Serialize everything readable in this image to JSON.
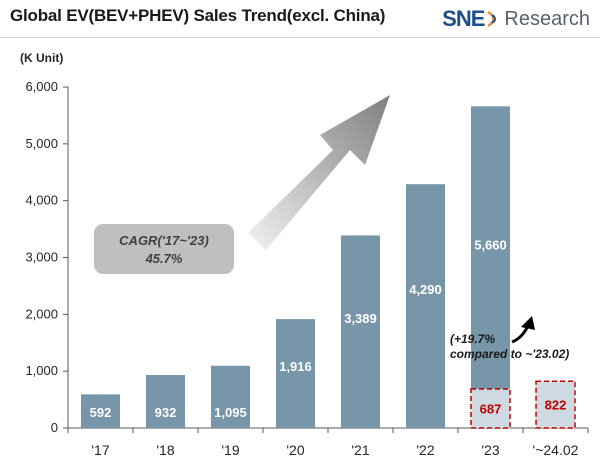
{
  "title": "Global EV(BEV+PHEV)  Sales Trend(excl. China)",
  "logo": {
    "brand": "SNE",
    "suffix": "Research"
  },
  "chart_data": {
    "type": "bar",
    "unit_label": "(K Unit)",
    "categories": [
      "'17",
      "'18",
      "'19",
      "'20",
      "'21",
      "'22",
      "'23",
      "'~24.02"
    ],
    "series": [
      {
        "values": [
          592,
          932,
          1095,
          1916,
          3389,
          4290,
          5660,
          null
        ]
      }
    ],
    "ytd": [
      {
        "category": "'23",
        "value": 687
      },
      {
        "category": "'~24.02",
        "value": 822
      }
    ],
    "value_labels": [
      "592",
      "932",
      "1,095",
      "1,916",
      "3,389",
      "4,290",
      "5,660"
    ],
    "ytd_labels": [
      "687",
      "822"
    ],
    "ylim": [
      0,
      6000
    ],
    "yticks": [
      0,
      1000,
      2000,
      3000,
      4000,
      5000,
      6000
    ],
    "ytick_labels": [
      "0",
      "1,000",
      "2,000",
      "3,000",
      "4,000",
      "5,000",
      "6,000"
    ],
    "grid": false,
    "annotations": {
      "cagr_line1": "CAGR('17~'23)",
      "cagr_line2": "45.7%",
      "growth_line1": "(+19.7%",
      "growth_line2": "compared to ~'23.02)"
    },
    "colors": {
      "bar": "#7796a9",
      "ytd_fill": "#cfd9e1",
      "ytd_border": "#c00000",
      "ytd_text": "#c00000",
      "axis": "#595959"
    }
  }
}
